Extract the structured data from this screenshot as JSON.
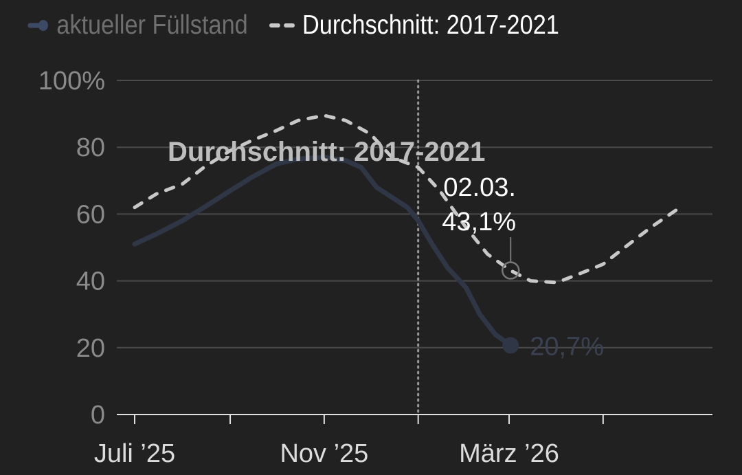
{
  "legend": {
    "current_label": "aktueller Füllstand",
    "average_label": "Durchschnitt: 2017-2021"
  },
  "colors": {
    "background": "#212121",
    "current": "#2f3747",
    "average": "#c8c8c8",
    "grid": "#4a4a4a"
  },
  "chart_data": {
    "type": "line",
    "ylim": [
      0,
      100
    ],
    "y_ticks": [
      "0",
      "20",
      "40",
      "60",
      "80",
      "100%"
    ],
    "y_tick_values": [
      0,
      20,
      40,
      60,
      80,
      100
    ],
    "x_ticks": [
      {
        "date": "2025-07-01",
        "label": "Juli ’25"
      },
      {
        "date": "2025-09-01",
        "label": ""
      },
      {
        "date": "2025-11-01",
        "label": "Nov ’25"
      },
      {
        "date": "2026-01-01",
        "label": ""
      },
      {
        "date": "2026-03-01",
        "label": "März ’26"
      },
      {
        "date": "2026-05-01",
        "label": ""
      }
    ],
    "grid": true,
    "legend_position": "top-left",
    "marker_line_date": "2026-01-01",
    "series": [
      {
        "name": "aktueller Füllstand",
        "style": "solid",
        "end_label": "20,7%",
        "points": [
          [
            "2025-07-01",
            51
          ],
          [
            "2025-07-15",
            54
          ],
          [
            "2025-08-01",
            58
          ],
          [
            "2025-08-15",
            62
          ],
          [
            "2025-09-01",
            67
          ],
          [
            "2025-09-15",
            71
          ],
          [
            "2025-10-01",
            75
          ],
          [
            "2025-10-15",
            76.5
          ],
          [
            "2025-11-01",
            77
          ],
          [
            "2025-11-15",
            76
          ],
          [
            "2025-11-25",
            74
          ],
          [
            "2025-12-05",
            68
          ],
          [
            "2025-12-15",
            65
          ],
          [
            "2025-12-25",
            62
          ],
          [
            "2026-01-01",
            58
          ],
          [
            "2026-01-10",
            51
          ],
          [
            "2026-01-20",
            44
          ],
          [
            "2026-02-01",
            38
          ],
          [
            "2026-02-10",
            30
          ],
          [
            "2026-02-20",
            24
          ],
          [
            "2026-03-02",
            20.7
          ]
        ]
      },
      {
        "name": "Durchschnitt: 2017-2021",
        "style": "dashed",
        "inline_label": "Durchschnitt: 2017-2021",
        "points": [
          [
            "2025-07-01",
            62
          ],
          [
            "2025-07-15",
            66
          ],
          [
            "2025-08-01",
            69
          ],
          [
            "2025-08-15",
            74
          ],
          [
            "2025-09-01",
            79
          ],
          [
            "2025-09-15",
            82
          ],
          [
            "2025-10-01",
            85
          ],
          [
            "2025-10-15",
            88
          ],
          [
            "2025-11-01",
            89.5
          ],
          [
            "2025-11-15",
            88
          ],
          [
            "2025-12-01",
            84
          ],
          [
            "2025-12-15",
            77
          ],
          [
            "2026-01-01",
            74
          ],
          [
            "2026-01-15",
            67
          ],
          [
            "2026-02-01",
            56
          ],
          [
            "2026-02-15",
            48
          ],
          [
            "2026-03-02",
            43.1
          ],
          [
            "2026-03-15",
            40
          ],
          [
            "2026-04-01",
            39.5
          ],
          [
            "2026-04-15",
            42
          ],
          [
            "2026-05-01",
            45
          ],
          [
            "2026-05-15",
            50
          ],
          [
            "2026-06-01",
            56
          ],
          [
            "2026-06-20",
            62
          ]
        ]
      }
    ],
    "annotation": {
      "date": "2026-03-02",
      "value": 43.1,
      "date_label": "02.03.",
      "value_label": "43,1%"
    }
  }
}
